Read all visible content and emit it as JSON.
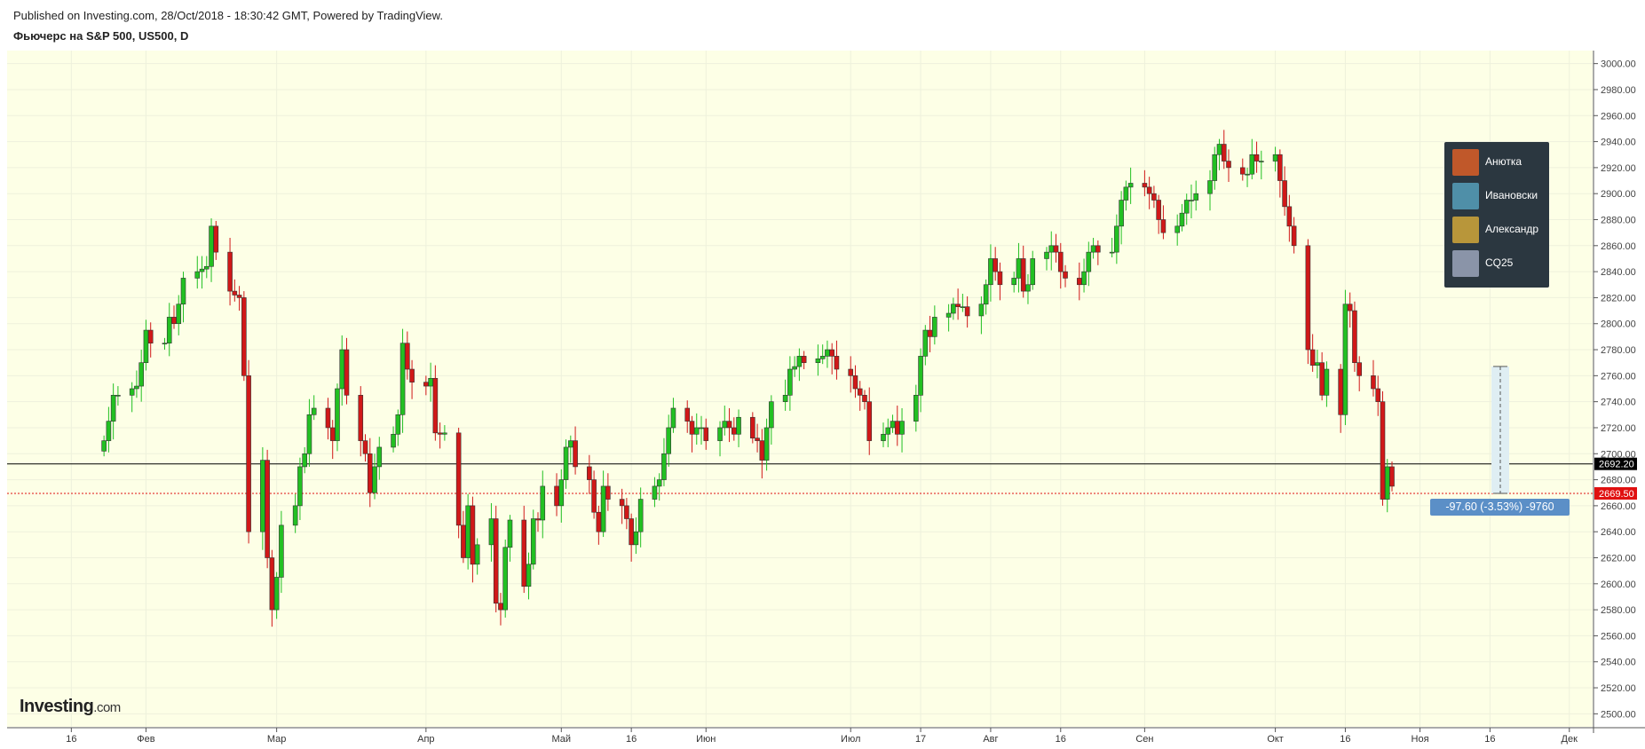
{
  "header": {
    "published": "Published on Investing.com, 28/Oct/2018 - 18:30:42 GMT, Powered by TradingView.",
    "instrument": "Фьючерс на S&P 500, US500, D"
  },
  "logo": {
    "brand": "Investing",
    "suffix": ".com"
  },
  "legend": {
    "items": [
      {
        "name": "Анютка",
        "avatar_color": "#c0582a"
      },
      {
        "name": "Ивановски",
        "avatar_color": "#4f8fa8"
      },
      {
        "name": "Александр",
        "avatar_color": "#b8963a"
      },
      {
        "name": "CQ25",
        "avatar_color": "#8a94a8"
      }
    ]
  },
  "measure": {
    "label": "-97.60 (-3.53%) -9760"
  },
  "colors": {
    "background": "#fdffe6",
    "up": "#22c022",
    "down": "#d01818",
    "last_price_line": "#000000",
    "current_price_line": "#e01010",
    "measure_box": "#dfeef3"
  },
  "chart_data": {
    "type": "candlestick",
    "ylim": [
      2490,
      3010
    ],
    "y_ticks": [
      "2500.00",
      "2520.00",
      "2540.00",
      "2560.00",
      "2580.00",
      "2600.00",
      "2620.00",
      "2640.00",
      "2660.00",
      "2680.00",
      "2700.00",
      "2720.00",
      "2740.00",
      "2760.00",
      "2780.00",
      "2800.00",
      "2820.00",
      "2840.00",
      "2860.00",
      "2880.00",
      "2900.00",
      "2920.00",
      "2940.00",
      "2960.00",
      "2980.00",
      "3000.00"
    ],
    "x_ticks": [
      {
        "label": "16",
        "date": "2018-01-16"
      },
      {
        "label": "Фев",
        "date": "2018-02-01"
      },
      {
        "label": "Мар",
        "date": "2018-03-01"
      },
      {
        "label": "Апр",
        "date": "2018-04-02"
      },
      {
        "label": "Май",
        "date": "2018-05-01"
      },
      {
        "label": "16",
        "date": "2018-05-16"
      },
      {
        "label": "Июн",
        "date": "2018-06-01"
      },
      {
        "label": "Июл",
        "date": "2018-07-02"
      },
      {
        "label": "17",
        "date": "2018-07-17"
      },
      {
        "label": "Авг",
        "date": "2018-08-01"
      },
      {
        "label": "16",
        "date": "2018-08-16"
      },
      {
        "label": "Сен",
        "date": "2018-09-03"
      },
      {
        "label": "Окт",
        "date": "2018-10-01"
      },
      {
        "label": "16",
        "date": "2018-10-16"
      },
      {
        "label": "Ноя",
        "date": "2018-11-01"
      },
      {
        "label": "16",
        "date": "2018-11-16"
      },
      {
        "label": "Дек",
        "date": "2018-12-03"
      }
    ],
    "first_date": "2018-01-03",
    "last_date": "2018-10-26",
    "horizontal_line": {
      "value": 2692.2,
      "label": "2692.20"
    },
    "last_price": {
      "value": 2669.5,
      "label": "2669.50"
    },
    "measure_range": {
      "from": 2767.1,
      "to": 2669.5
    },
    "closes": [
      2710,
      2725,
      2745,
      2745,
      2750,
      2752,
      2770,
      2795,
      2785,
      2785,
      2805,
      2800,
      2815,
      2835,
      2840,
      2842,
      2844,
      2875,
      2855,
      2825,
      2822,
      2820,
      2760,
      2640,
      2695,
      2620,
      2580,
      2605,
      2645,
      2660,
      2690,
      2700,
      2730,
      2735,
      2720,
      2710,
      2750,
      2780,
      2745,
      2710,
      2700,
      2670,
      2690,
      2705,
      2715,
      2730,
      2785,
      2765,
      2755,
      2752,
      2758,
      2716,
      2715,
      2716,
      2645,
      2620,
      2660,
      2615,
      2630,
      2650,
      2585,
      2580,
      2628,
      2649,
      2598,
      2615,
      2650,
      2649,
      2675,
      2660,
      2680,
      2705,
      2710,
      2690,
      2680,
      2655,
      2640,
      2675,
      2665,
      2660,
      2650,
      2630,
      2640,
      2665,
      2675,
      2680,
      2700,
      2720,
      2735,
      2725,
      2715,
      2720,
      2720,
      2710,
      2720,
      2725,
      2720,
      2715,
      2728,
      2712,
      2710,
      2695,
      2720,
      2740,
      2745,
      2765,
      2767,
      2775,
      2770,
      2773,
      2775,
      2780,
      2775,
      2765,
      2760,
      2750,
      2745,
      2740,
      2710,
      2715,
      2720,
      2725,
      2715,
      2725,
      2745,
      2775,
      2795,
      2790,
      2805,
      2808,
      2815,
      2813,
      2813,
      2806,
      2815,
      2830,
      2850,
      2840,
      2830,
      2835,
      2850,
      2825,
      2830,
      2850,
      2855,
      2860,
      2855,
      2840,
      2835,
      2830,
      2840,
      2855,
      2860,
      2855,
      2855,
      2875,
      2895,
      2905,
      2908,
      2905,
      2900,
      2895,
      2880,
      2870,
      2875,
      2885,
      2895,
      2895,
      2900,
      2910,
      2930,
      2938,
      2925,
      2920,
      2915,
      2915,
      2930,
      2925,
      2925,
      2930,
      2910,
      2890,
      2875,
      2860,
      2780,
      2768,
      2770,
      2745,
      2765,
      2730,
      2815,
      2810,
      2770,
      2760,
      2750,
      2740,
      2665,
      2690,
      2675
    ]
  }
}
